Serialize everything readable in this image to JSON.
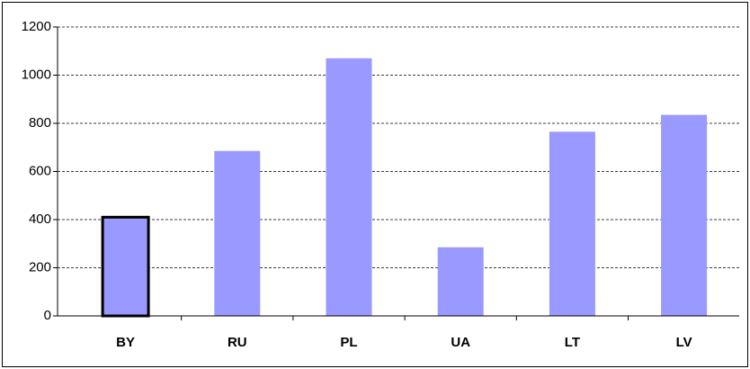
{
  "chart_data": {
    "type": "bar",
    "categories": [
      "BY",
      "RU",
      "PL",
      "UA",
      "LT",
      "LV"
    ],
    "values": [
      410,
      685,
      1070,
      285,
      765,
      835
    ],
    "color": "#9999ff",
    "highlight": "BY",
    "ylim": [
      0,
      1200
    ],
    "yticks": [
      0,
      200,
      400,
      600,
      800,
      1000,
      1200
    ],
    "grid": true
  }
}
